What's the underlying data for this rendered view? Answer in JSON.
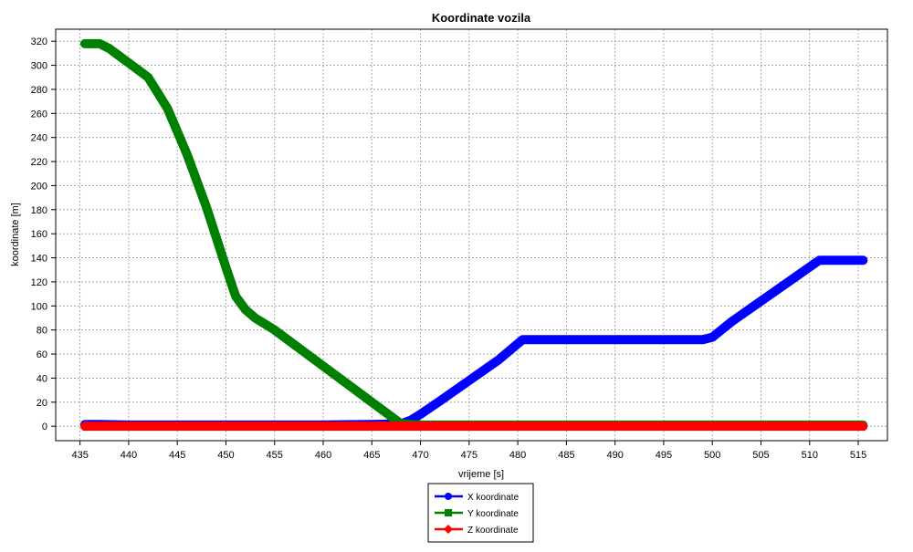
{
  "chart_data": {
    "type": "line",
    "title": "Koordinate vozila",
    "xlabel": "vrijeme [s]",
    "ylabel": "koordinate [m]",
    "xlim": [
      432.5,
      518
    ],
    "ylim": [
      -12,
      330
    ],
    "xticks": [
      435,
      440,
      445,
      450,
      455,
      460,
      465,
      470,
      475,
      480,
      485,
      490,
      495,
      500,
      505,
      510,
      515
    ],
    "yticks": [
      0,
      20,
      40,
      60,
      80,
      100,
      120,
      140,
      160,
      180,
      200,
      220,
      240,
      260,
      280,
      300,
      320
    ],
    "grid": true,
    "legend_position": "bottom-center",
    "series": [
      {
        "name": "X koordinate",
        "color": "#0000ff",
        "marker": "circle",
        "x": [
          435.5,
          437,
          440,
          450,
          460,
          465,
          468,
          469,
          470,
          472,
          475,
          478,
          480.5,
          485,
          490,
          495,
          499,
          500,
          502,
          505,
          508,
          511,
          512,
          515.5
        ],
        "y": [
          1.5,
          1.5,
          1,
          1,
          1,
          1.5,
          2,
          5,
          10,
          21,
          38,
          55,
          72,
          72,
          72,
          72,
          72,
          74,
          87,
          104,
          121,
          138,
          138,
          138
        ]
      },
      {
        "name": "Y koordinate",
        "color": "#008000",
        "marker": "square",
        "x": [
          435.5,
          437,
          438,
          440,
          442,
          444,
          446,
          448,
          450,
          451,
          452,
          453,
          455,
          460,
          465,
          468,
          470,
          480,
          490,
          500,
          510,
          515.5
        ],
        "y": [
          318,
          318,
          314,
          302,
          290,
          264,
          226,
          182,
          132,
          108,
          97,
          90,
          80,
          50,
          20,
          2,
          1,
          1,
          1,
          1,
          1,
          1
        ]
      },
      {
        "name": "Z koordinate",
        "color": "#ff0000",
        "marker": "diamond",
        "x": [
          435.5,
          515.5
        ],
        "y": [
          0,
          0
        ]
      }
    ]
  }
}
